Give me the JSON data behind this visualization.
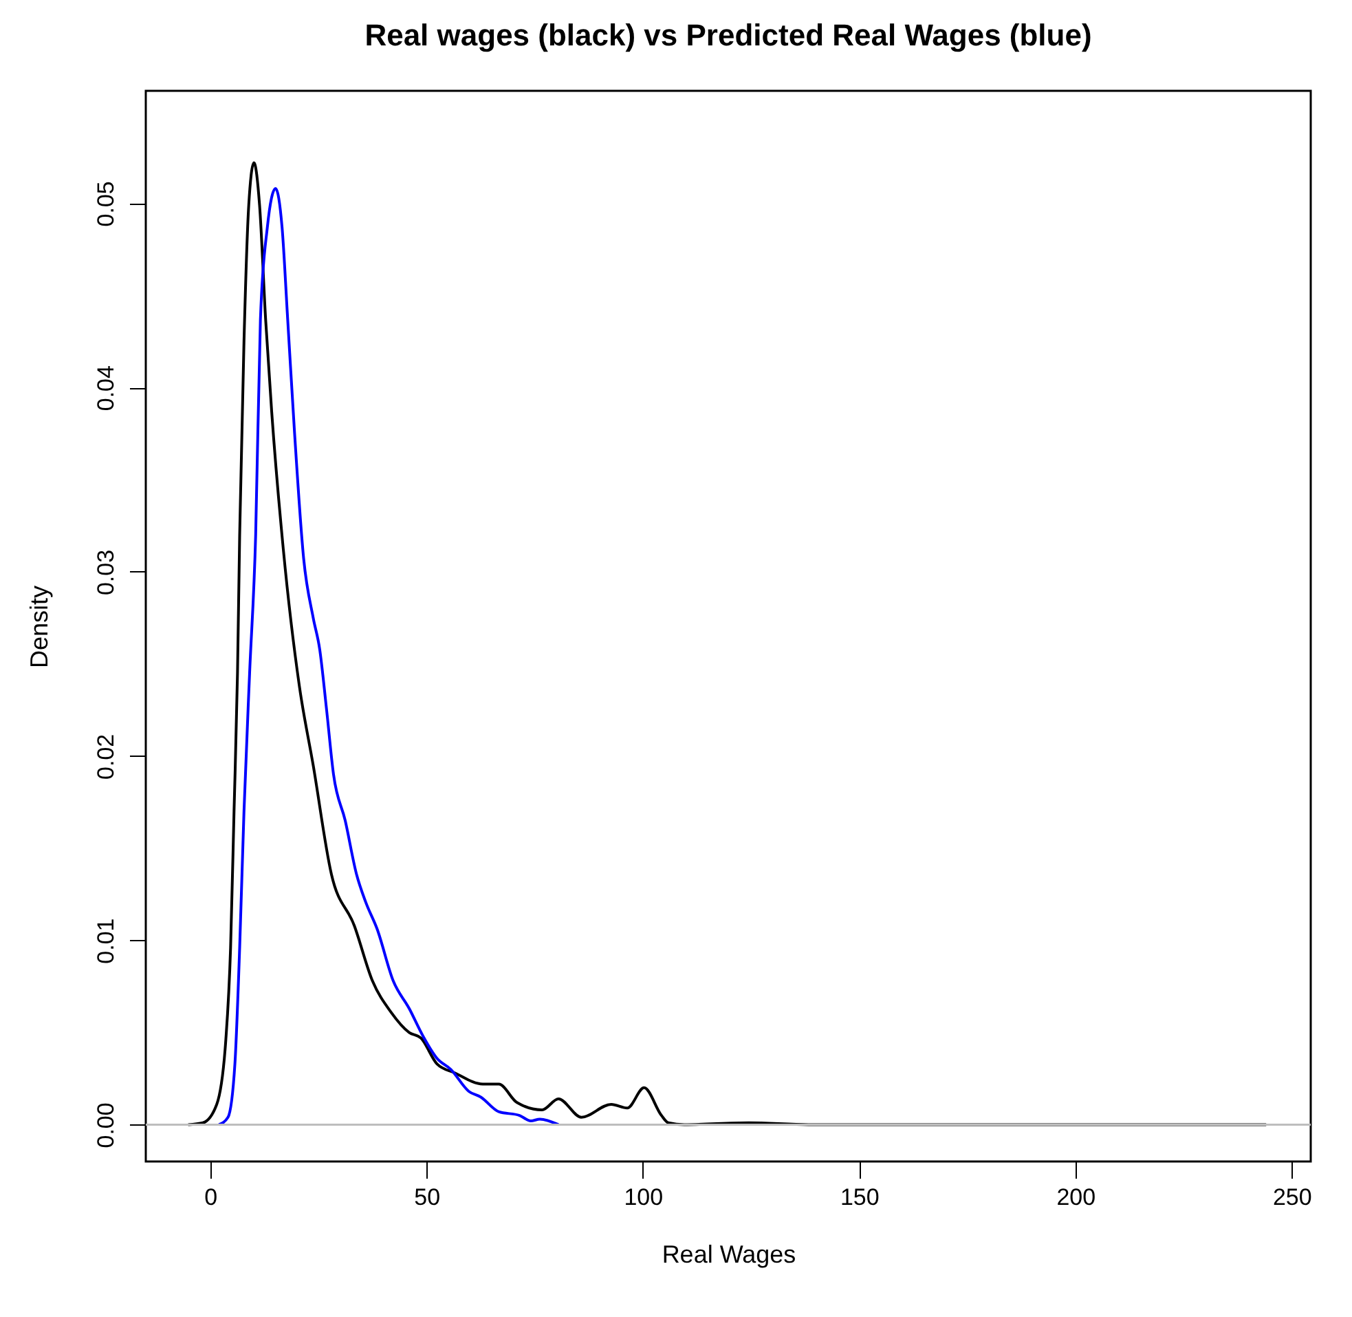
{
  "chart_data": {
    "type": "line",
    "title": "Real wages (black) vs Predicted Real Wages (blue)",
    "xlabel": "Real Wages",
    "ylabel": "Density",
    "xlim": [
      -14.9,
      254.4
    ],
    "ylim": [
      -0.002,
      0.0561
    ],
    "xticks": [
      0,
      50,
      100,
      150,
      200,
      250
    ],
    "yticks": [
      {
        "value": 0,
        "label": "0.00"
      },
      0.01,
      0.02,
      0.03,
      0.04,
      0.05
    ],
    "grid": false,
    "legend": false,
    "line_style": "solid",
    "marker": "none",
    "ref_lines": [
      {
        "axis": "y",
        "value": 0,
        "color": "#bebebe"
      }
    ],
    "series": [
      {
        "color": "#000000",
        "x": [
          -5.1,
          -1.7,
          1.5,
          3.6,
          4.7,
          5.5,
          6.3,
          6.8,
          7.8,
          8.9,
          10.1,
          11.4,
          12.8,
          14.2,
          16.9,
          20.6,
          23.8,
          28.0,
          33.3,
          37.5,
          41.8,
          46.0,
          48.7,
          52.4,
          56.6,
          63.0,
          66.7,
          70.9,
          76.7,
          80.5,
          85.8,
          92.7,
          96.4,
          100.3,
          104.3,
          105.9,
          109.6,
          124.5,
          138.3,
          244.1
        ],
        "values": [
          0,
          0.0001,
          0.0011,
          0.0046,
          0.0096,
          0.017,
          0.0245,
          0.032,
          0.0425,
          0.0499,
          0.0522,
          0.0499,
          0.0437,
          0.0387,
          0.0312,
          0.0238,
          0.0195,
          0.0136,
          0.0108,
          0.0078,
          0.0061,
          0.005,
          0.0047,
          0.0033,
          0.0028,
          0.0022,
          0.0022,
          0.0012,
          0.0008,
          0.0014,
          0.0004,
          0.0011,
          0.0009,
          0.002,
          0.0005,
          0.0001,
          0,
          0.0001,
          0,
          0
        ]
      },
      {
        "color": "#0000ff",
        "x": [
          2.0,
          4.1,
          5.7,
          6.8,
          7.8,
          9.1,
          10.5,
          11.6,
          13.2,
          15.1,
          16.6,
          17.9,
          19.5,
          21.6,
          23.8,
          25.3,
          26.9,
          28.5,
          31.2,
          33.8,
          35.9,
          38.6,
          42.3,
          46.0,
          49.2,
          52.4,
          55.6,
          59.8,
          62.5,
          66.7,
          71.5,
          74.1,
          76.2,
          80.5
        ],
        "values": [
          0,
          0.0004,
          0.0033,
          0.0096,
          0.017,
          0.0245,
          0.032,
          0.0437,
          0.0487,
          0.0508,
          0.0487,
          0.0437,
          0.0375,
          0.0307,
          0.0275,
          0.0258,
          0.0225,
          0.019,
          0.0165,
          0.0136,
          0.0121,
          0.0106,
          0.0078,
          0.0063,
          0.0048,
          0.0036,
          0.003,
          0.0018,
          0.0015,
          0.0007,
          0.0005,
          0.0002,
          0.0003,
          0
        ]
      }
    ]
  }
}
